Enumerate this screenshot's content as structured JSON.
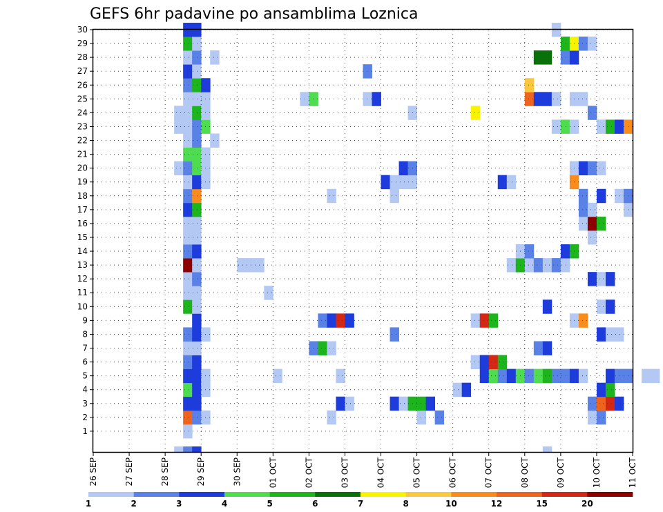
{
  "chart_data": {
    "type": "heatmap",
    "title": "GEFS 6hr padavine po ansamblima Loznica",
    "x_tick_labels": [
      "26 SEP",
      "27 SEP",
      "28 SEP",
      "29 SEP",
      "30 SEP",
      "01 OCT",
      "02 OCT",
      "03 OCT",
      "04 OCT",
      "05 OCT",
      "06 OCT",
      "07 OCT",
      "08 OCT",
      "09 OCT",
      "10 OCT",
      "11 OCT"
    ],
    "y_tick_labels": [
      "1",
      "2",
      "3",
      "4",
      "5",
      "6",
      "7",
      "8",
      "9",
      "10",
      "11",
      "12",
      "13",
      "14",
      "15",
      "16",
      "17",
      "18",
      "19",
      "20",
      "21",
      "22",
      "23",
      "24",
      "25",
      "26",
      "27",
      "28",
      "29",
      "30"
    ],
    "ylim": [
      0,
      30
    ],
    "time_step_hours": 6,
    "grid": true,
    "colorbar": {
      "labels": [
        "1",
        "2",
        "3",
        "4",
        "5",
        "6",
        "7",
        "8",
        "10",
        "12",
        "15",
        "20"
      ],
      "colors": [
        "#b4c8f4",
        "#5a82e6",
        "#1e3cdc",
        "#50dc50",
        "#1eb41e",
        "#0a700a",
        "#f8f400",
        "#fac840",
        "#fa8c1e",
        "#ec641e",
        "#d22814",
        "#8c0000"
      ]
    },
    "cells": [
      {
        "m": 1,
        "s": [
          [
            10,
            0
          ]
        ]
      },
      {
        "m": 2,
        "s": [
          [
            10,
            9
          ],
          [
            11,
            1
          ],
          [
            12,
            0
          ],
          [
            26,
            0
          ],
          [
            36,
            0
          ],
          [
            38,
            1
          ],
          [
            55,
            0
          ],
          [
            56,
            1
          ]
        ]
      },
      {
        "m": 3,
        "s": [
          [
            10,
            2
          ],
          [
            11,
            2
          ],
          [
            27,
            2
          ],
          [
            28,
            0
          ],
          [
            33,
            2
          ],
          [
            34,
            0
          ],
          [
            35,
            4
          ],
          [
            36,
            4
          ],
          [
            37,
            2
          ],
          [
            55,
            1
          ],
          [
            56,
            9
          ],
          [
            57,
            10
          ],
          [
            58,
            2
          ]
        ]
      },
      {
        "m": 4,
        "s": [
          [
            10,
            3
          ],
          [
            11,
            2
          ],
          [
            12,
            0
          ],
          [
            40,
            0
          ],
          [
            41,
            2
          ],
          [
            56,
            2
          ],
          [
            57,
            4
          ]
        ]
      },
      {
        "m": 5,
        "s": [
          [
            10,
            2
          ],
          [
            11,
            2
          ],
          [
            12,
            0
          ],
          [
            20,
            0
          ],
          [
            27,
            0
          ],
          [
            43,
            2
          ],
          [
            44,
            3
          ],
          [
            45,
            1
          ],
          [
            46,
            2
          ],
          [
            47,
            3
          ],
          [
            48,
            1
          ],
          [
            49,
            3
          ],
          [
            50,
            4
          ],
          [
            51,
            1
          ],
          [
            52,
            1
          ],
          [
            53,
            2
          ],
          [
            54,
            0
          ],
          [
            57,
            2
          ],
          [
            58,
            1
          ],
          [
            59,
            1
          ],
          [
            61,
            0
          ],
          [
            62,
            0
          ]
        ]
      },
      {
        "m": 6,
        "s": [
          [
            10,
            1
          ],
          [
            11,
            2
          ],
          [
            42,
            0
          ],
          [
            43,
            2
          ],
          [
            44,
            10
          ],
          [
            45,
            4
          ]
        ]
      },
      {
        "m": 7,
        "s": [
          [
            10,
            0
          ],
          [
            11,
            0
          ],
          [
            24,
            1
          ],
          [
            25,
            4
          ],
          [
            26,
            0
          ],
          [
            49,
            1
          ],
          [
            50,
            2
          ]
        ]
      },
      {
        "m": 8,
        "s": [
          [
            10,
            1
          ],
          [
            11,
            2
          ],
          [
            12,
            0
          ],
          [
            33,
            1
          ],
          [
            56,
            2
          ],
          [
            57,
            0
          ],
          [
            58,
            0
          ]
        ]
      },
      {
        "m": 9,
        "s": [
          [
            11,
            2
          ],
          [
            25,
            1
          ],
          [
            26,
            2
          ],
          [
            27,
            10
          ],
          [
            28,
            2
          ],
          [
            42,
            0
          ],
          [
            43,
            10
          ],
          [
            44,
            4
          ],
          [
            53,
            0
          ],
          [
            54,
            8
          ]
        ]
      },
      {
        "m": 10,
        "s": [
          [
            10,
            4
          ],
          [
            11,
            0
          ],
          [
            50,
            2
          ],
          [
            56,
            0
          ],
          [
            57,
            2
          ]
        ]
      },
      {
        "m": 11,
        "s": [
          [
            10,
            0
          ],
          [
            11,
            0
          ],
          [
            19,
            0
          ]
        ]
      },
      {
        "m": 12,
        "s": [
          [
            10,
            0
          ],
          [
            11,
            1
          ],
          [
            55,
            2
          ],
          [
            56,
            0
          ],
          [
            57,
            2
          ]
        ]
      },
      {
        "m": 13,
        "s": [
          [
            10,
            11
          ],
          [
            11,
            0
          ],
          [
            16,
            0
          ],
          [
            17,
            0
          ],
          [
            18,
            0
          ],
          [
            46,
            0
          ],
          [
            47,
            4
          ],
          [
            48,
            0
          ],
          [
            49,
            1
          ],
          [
            50,
            0
          ],
          [
            51,
            1
          ],
          [
            52,
            0
          ]
        ]
      },
      {
        "m": 14,
        "s": [
          [
            10,
            1
          ],
          [
            11,
            2
          ],
          [
            47,
            0
          ],
          [
            48,
            1
          ],
          [
            52,
            2
          ],
          [
            53,
            4
          ]
        ]
      },
      {
        "m": 15,
        "s": [
          [
            10,
            0
          ],
          [
            11,
            0
          ],
          [
            55,
            0
          ]
        ]
      },
      {
        "m": 16,
        "s": [
          [
            10,
            0
          ],
          [
            11,
            0
          ],
          [
            54,
            0
          ],
          [
            55,
            11
          ],
          [
            56,
            4
          ]
        ]
      },
      {
        "m": 17,
        "s": [
          [
            10,
            2
          ],
          [
            11,
            4
          ],
          [
            54,
            1
          ],
          [
            55,
            0
          ],
          [
            59,
            0
          ]
        ]
      },
      {
        "m": 18,
        "s": [
          [
            10,
            1
          ],
          [
            11,
            8
          ],
          [
            26,
            0
          ],
          [
            33,
            0
          ],
          [
            54,
            1
          ],
          [
            56,
            2
          ],
          [
            58,
            0
          ],
          [
            59,
            1
          ]
        ]
      },
      {
        "m": 19,
        "s": [
          [
            10,
            0
          ],
          [
            11,
            2
          ],
          [
            12,
            0
          ],
          [
            32,
            2
          ],
          [
            33,
            0
          ],
          [
            34,
            0
          ],
          [
            35,
            0
          ],
          [
            45,
            2
          ],
          [
            46,
            0
          ],
          [
            53,
            8
          ]
        ]
      },
      {
        "m": 20,
        "s": [
          [
            9,
            0
          ],
          [
            10,
            1
          ],
          [
            11,
            3
          ],
          [
            12,
            0
          ],
          [
            34,
            2
          ],
          [
            35,
            1
          ],
          [
            53,
            0
          ],
          [
            54,
            2
          ],
          [
            55,
            1
          ],
          [
            56,
            0
          ]
        ]
      },
      {
        "m": 21,
        "s": [
          [
            10,
            3
          ],
          [
            11,
            3
          ],
          [
            12,
            0
          ]
        ]
      },
      {
        "m": 22,
        "s": [
          [
            10,
            0
          ],
          [
            11,
            1
          ],
          [
            13,
            0
          ]
        ]
      },
      {
        "m": 23,
        "s": [
          [
            9,
            0
          ],
          [
            10,
            0
          ],
          [
            11,
            1
          ],
          [
            12,
            3
          ],
          [
            51,
            0
          ],
          [
            52,
            3
          ],
          [
            53,
            0
          ],
          [
            56,
            0
          ],
          [
            57,
            4
          ],
          [
            58,
            2
          ],
          [
            59,
            8
          ]
        ]
      },
      {
        "m": 24,
        "s": [
          [
            9,
            0
          ],
          [
            10,
            0
          ],
          [
            11,
            4
          ],
          [
            12,
            0
          ],
          [
            35,
            0
          ],
          [
            42,
            6
          ],
          [
            55,
            1
          ]
        ]
      },
      {
        "m": 25,
        "s": [
          [
            10,
            0
          ],
          [
            11,
            0
          ],
          [
            12,
            0
          ],
          [
            23,
            0
          ],
          [
            24,
            3
          ],
          [
            30,
            0
          ],
          [
            31,
            2
          ],
          [
            48,
            9
          ],
          [
            49,
            2
          ],
          [
            50,
            2
          ],
          [
            51,
            0
          ],
          [
            53,
            0
          ],
          [
            54,
            0
          ]
        ]
      },
      {
        "m": 26,
        "s": [
          [
            10,
            1
          ],
          [
            11,
            4
          ],
          [
            12,
            2
          ],
          [
            48,
            7
          ]
        ]
      },
      {
        "m": 27,
        "s": [
          [
            10,
            2
          ],
          [
            11,
            0
          ],
          [
            30,
            1
          ]
        ]
      },
      {
        "m": 28,
        "s": [
          [
            10,
            0
          ],
          [
            11,
            1
          ],
          [
            13,
            0
          ],
          [
            49,
            5
          ],
          [
            50,
            5
          ],
          [
            52,
            1
          ],
          [
            53,
            2
          ]
        ]
      },
      {
        "m": 29,
        "s": [
          [
            10,
            4
          ],
          [
            11,
            0
          ],
          [
            52,
            4
          ],
          [
            53,
            6
          ],
          [
            54,
            1
          ],
          [
            55,
            0
          ]
        ]
      },
      {
        "m": 30,
        "s": [
          [
            10,
            2
          ],
          [
            11,
            2
          ],
          [
            51,
            0
          ]
        ]
      }
    ],
    "bottom_marks": [
      [
        9,
        0
      ],
      [
        10,
        1
      ],
      [
        11,
        2
      ],
      [
        50,
        0
      ]
    ]
  }
}
